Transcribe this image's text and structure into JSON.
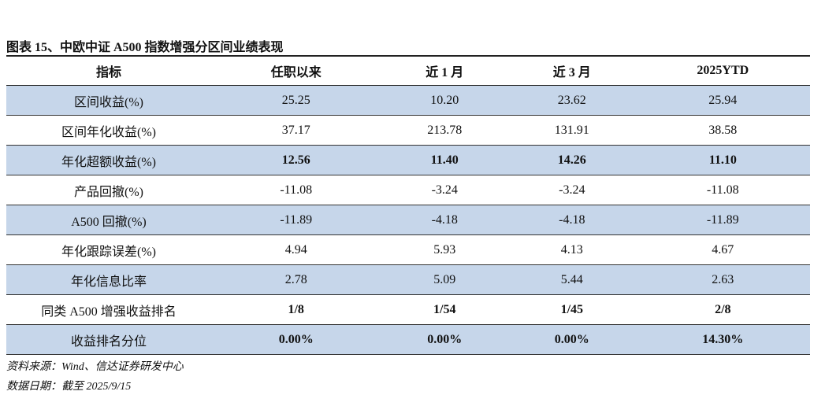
{
  "title": "图表 15、中欧中证 A500 指数增强分区间业绩表现",
  "table": {
    "header": [
      "指标",
      "任职以来",
      "近 1 月",
      "近 3 月",
      "2025YTD"
    ],
    "rows": [
      {
        "cells": [
          "区间收益(%)",
          "25.25",
          "10.20",
          "23.62",
          "25.94"
        ],
        "shaded": true,
        "bold": false
      },
      {
        "cells": [
          "区间年化收益(%)",
          "37.17",
          "213.78",
          "131.91",
          "38.58"
        ],
        "shaded": false,
        "bold": false
      },
      {
        "cells": [
          "年化超额收益(%)",
          "12.56",
          "11.40",
          "14.26",
          "11.10"
        ],
        "shaded": true,
        "bold": true
      },
      {
        "cells": [
          "产品回撤(%)",
          "-11.08",
          "-3.24",
          "-3.24",
          "-11.08"
        ],
        "shaded": false,
        "bold": false
      },
      {
        "cells": [
          "A500 回撤(%)",
          "-11.89",
          "-4.18",
          "-4.18",
          "-11.89"
        ],
        "shaded": true,
        "bold": false
      },
      {
        "cells": [
          "年化跟踪误差(%)",
          "4.94",
          "5.93",
          "4.13",
          "4.67"
        ],
        "shaded": false,
        "bold": false
      },
      {
        "cells": [
          "年化信息比率",
          "2.78",
          "5.09",
          "5.44",
          "2.63"
        ],
        "shaded": true,
        "bold": false
      },
      {
        "cells": [
          "同类 A500 增强收益排名",
          "1/8",
          "1/54",
          "1/45",
          "2/8"
        ],
        "shaded": false,
        "bold": true
      },
      {
        "cells": [
          "收益排名分位",
          "0.00%",
          "0.00%",
          "0.00%",
          "14.30%"
        ],
        "shaded": true,
        "bold": true
      }
    ]
  },
  "notes": [
    "资料来源：Wind、信达证券研发中心",
    "数据日期：截至 2025/9/15"
  ]
}
